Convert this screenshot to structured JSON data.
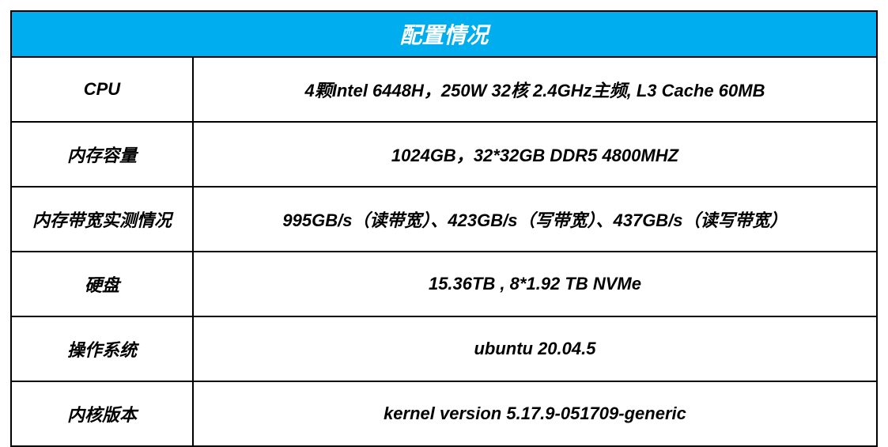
{
  "table": {
    "title": "配置情况",
    "header_bg": "#00aeef",
    "header_fg": "#ffffff",
    "border_color": "#000000",
    "cell_bg": "#ffffff",
    "cell_fg": "#000000",
    "title_fontsize": 28,
    "cell_fontsize": 22,
    "col_widths": [
      "21%",
      "79%"
    ],
    "rows": [
      {
        "label": "CPU",
        "value": "4颗Intel 6448H，250W 32核  2.4GHz主频, L3 Cache 60MB"
      },
      {
        "label": "内存容量",
        "value": "1024GB，32*32GB DDR5 4800MHZ"
      },
      {
        "label": "内存带宽实测情况",
        "value": "995GB/s（读带宽）、423GB/s（写带宽）、437GB/s（读写带宽）"
      },
      {
        "label": "硬盘",
        "value": "15.36TB , 8*1.92 TB NVMe"
      },
      {
        "label": "操作系统",
        "value": "ubuntu 20.04.5"
      },
      {
        "label": "内核版本",
        "value": "kernel version 5.17.9-051709-generic"
      }
    ]
  }
}
